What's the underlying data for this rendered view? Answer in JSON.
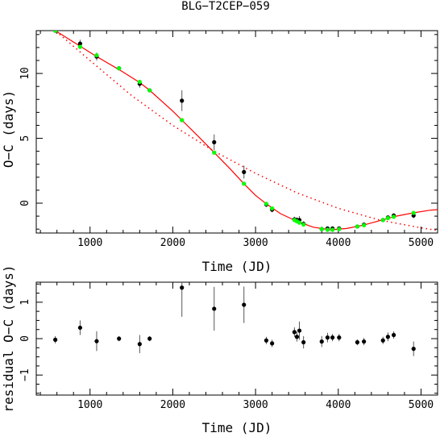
{
  "title": "BLG−T2CEP−059",
  "chart_data": [
    {
      "type": "scatter",
      "xlabel": "Time (JD)",
      "ylabel": "O−C (days)",
      "xlim": [
        350,
        5200
      ],
      "ylim": [
        -2.3,
        13.3
      ],
      "x_ticks": [
        1000,
        2000,
        3000,
        4000,
        5000
      ],
      "y_ticks": [
        0,
        5,
        10
      ],
      "grid": false,
      "colors": {
        "points": "#000000",
        "model": "#00ff00",
        "fit": "#ff0000"
      },
      "series": [
        {
          "points": [
            {
              "x": 580,
              "y": 13.3,
              "err": 0.2
            },
            {
              "x": 880,
              "y": 12.3,
              "err": 0.3
            },
            {
              "x": 1080,
              "y": 11.3,
              "err": 0.3
            },
            {
              "x": 1350,
              "y": 10.4,
              "err": 0.1
            },
            {
              "x": 1600,
              "y": 9.2,
              "err": 0.3
            },
            {
              "x": 1720,
              "y": 8.7,
              "err": 0.1
            },
            {
              "x": 2110,
              "y": 7.9,
              "err": 0.8
            },
            {
              "x": 2500,
              "y": 4.7,
              "err": 0.6
            },
            {
              "x": 2860,
              "y": 2.4,
              "err": 0.5
            },
            {
              "x": 3130,
              "y": -0.1,
              "err": 0.2
            },
            {
              "x": 3200,
              "y": -0.5,
              "err": 0.2
            },
            {
              "x": 3470,
              "y": -1.25,
              "err": 0.2
            },
            {
              "x": 3500,
              "y": -1.3,
              "err": 0.2
            },
            {
              "x": 3530,
              "y": -1.3,
              "err": 0.3
            },
            {
              "x": 3580,
              "y": -1.6,
              "err": 0.2
            },
            {
              "x": 3800,
              "y": -2.0,
              "err": 0.2
            },
            {
              "x": 3870,
              "y": -1.95,
              "err": 0.15
            },
            {
              "x": 3930,
              "y": -1.95,
              "err": 0.15
            },
            {
              "x": 4010,
              "y": -1.95,
              "err": 0.15
            },
            {
              "x": 4230,
              "y": -1.8,
              "err": 0.15
            },
            {
              "x": 4310,
              "y": -1.65,
              "err": 0.15
            },
            {
              "x": 4540,
              "y": -1.3,
              "err": 0.15
            },
            {
              "x": 4600,
              "y": -1.1,
              "err": 0.15
            },
            {
              "x": 4670,
              "y": -0.95,
              "err": 0.15
            },
            {
              "x": 4910,
              "y": -0.95,
              "err": 0.2
            }
          ]
        },
        {
          "points": [
            {
              "x": 580,
              "y": 13.3
            },
            {
              "x": 880,
              "y": 12.05
            },
            {
              "x": 1080,
              "y": 11.4
            },
            {
              "x": 1350,
              "y": 10.4
            },
            {
              "x": 1600,
              "y": 9.35
            },
            {
              "x": 1720,
              "y": 8.7
            },
            {
              "x": 2110,
              "y": 6.4
            },
            {
              "x": 2500,
              "y": 3.9
            },
            {
              "x": 2860,
              "y": 1.5
            },
            {
              "x": 3130,
              "y": -0.05
            },
            {
              "x": 3200,
              "y": -0.4
            },
            {
              "x": 3470,
              "y": -1.3
            },
            {
              "x": 3500,
              "y": -1.4
            },
            {
              "x": 3530,
              "y": -1.5
            },
            {
              "x": 3580,
              "y": -1.65
            },
            {
              "x": 3800,
              "y": -2.0
            },
            {
              "x": 3870,
              "y": -2.05
            },
            {
              "x": 3930,
              "y": -2.05
            },
            {
              "x": 4010,
              "y": -2.0
            },
            {
              "x": 4230,
              "y": -1.8
            },
            {
              "x": 4310,
              "y": -1.7
            },
            {
              "x": 4540,
              "y": -1.3
            },
            {
              "x": 4600,
              "y": -1.15
            },
            {
              "x": 4670,
              "y": -1.05
            },
            {
              "x": 4910,
              "y": -0.75
            }
          ]
        },
        {
          "line": "solid",
          "points": [
            {
              "x": 350,
              "y": 14.3
            },
            {
              "x": 580,
              "y": 13.3
            },
            {
              "x": 880,
              "y": 12.1
            },
            {
              "x": 1080,
              "y": 11.3
            },
            {
              "x": 1350,
              "y": 10.3
            },
            {
              "x": 1600,
              "y": 9.3
            },
            {
              "x": 1720,
              "y": 8.7
            },
            {
              "x": 2000,
              "y": 7.1
            },
            {
              "x": 2110,
              "y": 6.4
            },
            {
              "x": 2300,
              "y": 5.2
            },
            {
              "x": 2500,
              "y": 3.9
            },
            {
              "x": 2700,
              "y": 2.6
            },
            {
              "x": 2860,
              "y": 1.5
            },
            {
              "x": 3000,
              "y": 0.6
            },
            {
              "x": 3130,
              "y": -0.05
            },
            {
              "x": 3300,
              "y": -0.8
            },
            {
              "x": 3500,
              "y": -1.4
            },
            {
              "x": 3700,
              "y": -1.85
            },
            {
              "x": 3900,
              "y": -2.05
            },
            {
              "x": 4100,
              "y": -1.95
            },
            {
              "x": 4300,
              "y": -1.7
            },
            {
              "x": 4500,
              "y": -1.35
            },
            {
              "x": 4700,
              "y": -1.0
            },
            {
              "x": 4900,
              "y": -0.75
            },
            {
              "x": 5100,
              "y": -0.55
            },
            {
              "x": 5200,
              "y": -0.5
            }
          ]
        },
        {
          "line": "dotted",
          "points": [
            {
              "x": 350,
              "y": 14.0
            },
            {
              "x": 580,
              "y": 13.3
            },
            {
              "x": 1000,
              "y": 11.0
            },
            {
              "x": 1500,
              "y": 8.3
            },
            {
              "x": 2000,
              "y": 6.0
            },
            {
              "x": 2500,
              "y": 4.0
            },
            {
              "x": 3000,
              "y": 2.3
            },
            {
              "x": 3500,
              "y": 0.8
            },
            {
              "x": 4000,
              "y": -0.4
            },
            {
              "x": 4500,
              "y": -1.3
            },
            {
              "x": 5000,
              "y": -1.9
            },
            {
              "x": 5200,
              "y": -2.1
            }
          ]
        }
      ]
    },
    {
      "type": "scatter",
      "xlabel": "Time (JD)",
      "ylabel": "residual O−C (days)",
      "xlim": [
        350,
        5200
      ],
      "ylim": [
        -1.55,
        1.55
      ],
      "x_ticks": [
        1000,
        2000,
        3000,
        4000,
        5000
      ],
      "y_ticks": [
        -1,
        0,
        1
      ],
      "grid": false,
      "colors": {
        "points": "#000000"
      },
      "series": [
        {
          "points": [
            {
              "x": 580,
              "y": -0.03,
              "err": 0.1
            },
            {
              "x": 880,
              "y": 0.3,
              "err": 0.2
            },
            {
              "x": 1080,
              "y": -0.07,
              "err": 0.27
            },
            {
              "x": 1350,
              "y": 0.0,
              "err": 0.07
            },
            {
              "x": 1600,
              "y": -0.15,
              "err": 0.25
            },
            {
              "x": 1720,
              "y": 0.0,
              "err": 0.07
            },
            {
              "x": 2110,
              "y": 1.4,
              "err": 0.8
            },
            {
              "x": 2500,
              "y": 0.82,
              "err": 0.6
            },
            {
              "x": 2860,
              "y": 0.93,
              "err": 0.5
            },
            {
              "x": 3130,
              "y": -0.05,
              "err": 0.1
            },
            {
              "x": 3200,
              "y": -0.13,
              "err": 0.1
            },
            {
              "x": 3470,
              "y": 0.18,
              "err": 0.13
            },
            {
              "x": 3500,
              "y": 0.05,
              "err": 0.13
            },
            {
              "x": 3530,
              "y": 0.22,
              "err": 0.25
            },
            {
              "x": 3580,
              "y": -0.1,
              "err": 0.17
            },
            {
              "x": 3800,
              "y": -0.08,
              "err": 0.15
            },
            {
              "x": 3870,
              "y": 0.03,
              "err": 0.13
            },
            {
              "x": 3930,
              "y": 0.03,
              "err": 0.1
            },
            {
              "x": 4010,
              "y": 0.03,
              "err": 0.1
            },
            {
              "x": 4230,
              "y": -0.1,
              "err": 0.08
            },
            {
              "x": 4310,
              "y": -0.08,
              "err": 0.1
            },
            {
              "x": 4540,
              "y": -0.05,
              "err": 0.1
            },
            {
              "x": 4600,
              "y": 0.05,
              "err": 0.12
            },
            {
              "x": 4670,
              "y": 0.1,
              "err": 0.1
            },
            {
              "x": 4910,
              "y": -0.28,
              "err": 0.2
            }
          ]
        }
      ]
    }
  ]
}
